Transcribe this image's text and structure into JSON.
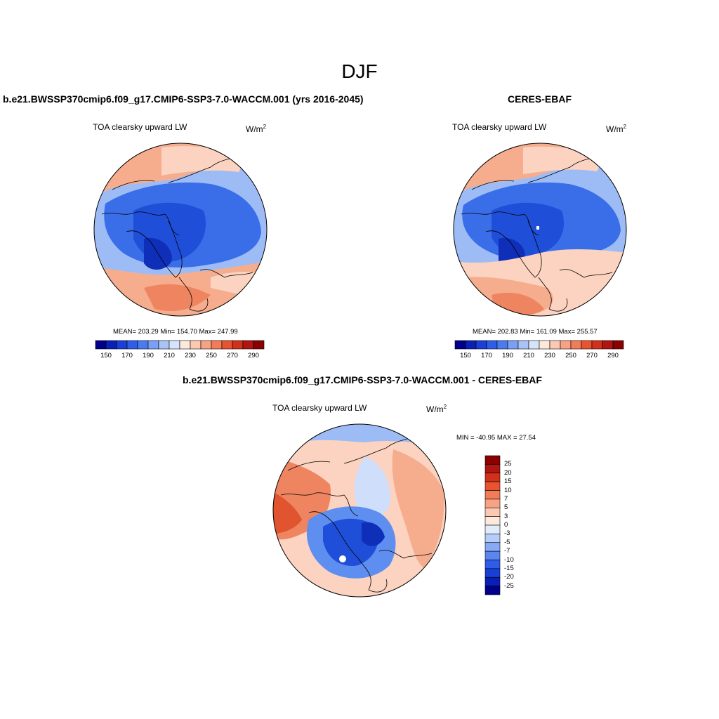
{
  "main_title": "DJF",
  "panels": {
    "model": {
      "title": "b.e21.BWSSP370cmip6.f09_g17.CMIP6-SSP3-7.0-WACCM.001 (yrs 2016-2045)",
      "variable": "TOA clearsky upward LW",
      "units": "W/m",
      "units_sup": "2",
      "stats": "MEAN= 203.29  Min= 154.70  Max= 247.99"
    },
    "obs": {
      "title": "CERES-EBAF",
      "variable": "TOA clearsky upward LW",
      "units": "W/m",
      "units_sup": "2",
      "stats": "MEAN= 202.83  Min= 161.09  Max= 255.57"
    },
    "diff": {
      "title": "b.e21.BWSSP370cmip6.f09_g17.CMIP6-SSP3-7.0-WACCM.001 - CERES-EBAF",
      "variable": "TOA clearsky upward LW",
      "units": "W/m",
      "units_sup": "2",
      "stats": "MIN = -40.95 MAX =  27.54"
    }
  },
  "colorbars": {
    "absolute": {
      "colors": [
        "#00008b",
        "#0a1fb5",
        "#1a3fd6",
        "#2f5ce8",
        "#4a7bf0",
        "#7aa0f5",
        "#a9c3f8",
        "#d6e4fb",
        "#fde8dc",
        "#fbc8b1",
        "#f7a383",
        "#f27c58",
        "#e8542f",
        "#d1301a",
        "#b01512",
        "#8b0000"
      ],
      "tick_labels": [
        "150",
        "170",
        "190",
        "210",
        "230",
        "250",
        "270",
        "290"
      ]
    },
    "difference": {
      "colors": [
        "#00008b",
        "#0a1fb5",
        "#1a3fd6",
        "#2f5ce8",
        "#5a86f2",
        "#88aaf6",
        "#b5cdf9",
        "#e0ebfc",
        "#fde8dc",
        "#fbc8b1",
        "#f7a383",
        "#f27c58",
        "#e8542f",
        "#d1301a",
        "#b01512",
        "#8b0000"
      ],
      "tick_labels": [
        "25",
        "20",
        "15",
        "10",
        "7",
        "5",
        "3",
        "0",
        "-3",
        "-5",
        "-7",
        "-10",
        "-15",
        "-20",
        "-25"
      ]
    }
  },
  "map_palette": {
    "deep_blue": "#1f4fd8",
    "blue": "#3a6ee8",
    "mid_blue": "#5e8ef0",
    "light_blue": "#9dbcf6",
    "pale_blue": "#cfdefa",
    "pale_orange": "#fbd3c0",
    "light_orange": "#f6ad8e",
    "orange": "#ef8560",
    "red_orange": "#e0552f",
    "dark_blue": "#0f2fb8",
    "coast": "#000000"
  }
}
